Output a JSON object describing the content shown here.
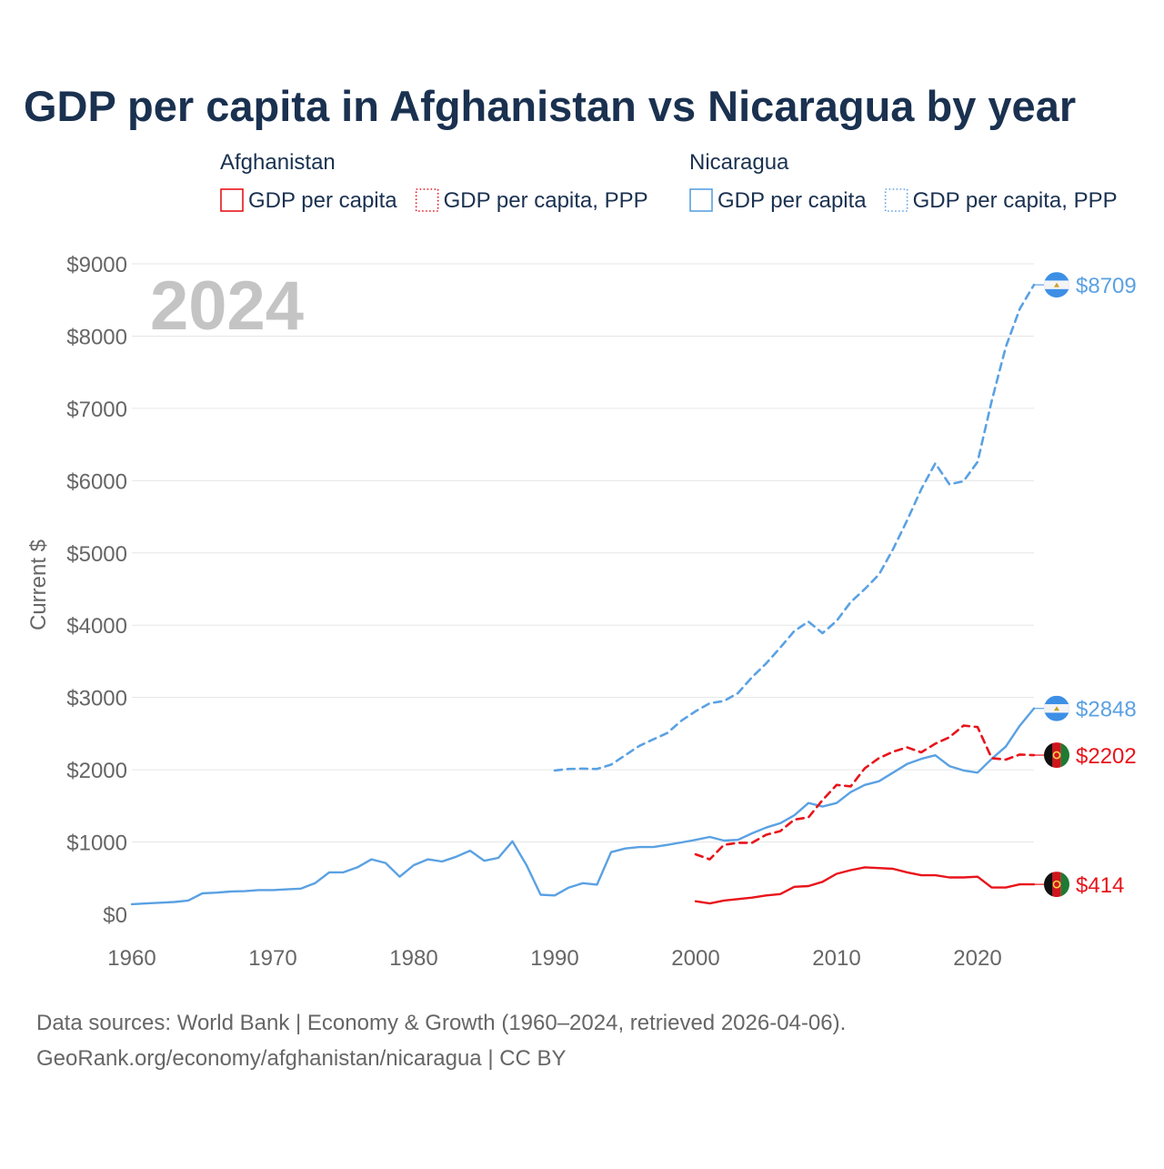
{
  "chart_data": {
    "type": "line",
    "title": "GDP per capita in Afghanistan vs Nicaragua by year",
    "year_badge": "2024",
    "ylabel": "Current $",
    "xlabel": "",
    "xlim": [
      1960,
      2024
    ],
    "ylim": [
      0,
      9000
    ],
    "x_ticks": [
      1960,
      1970,
      1980,
      1990,
      2000,
      2010,
      2020
    ],
    "y_ticks": [
      {
        "value": 0,
        "label": "$0"
      },
      {
        "value": 1000,
        "label": "$1000"
      },
      {
        "value": 2000,
        "label": "$2000"
      },
      {
        "value": 3000,
        "label": "$3000"
      },
      {
        "value": 4000,
        "label": "$4000"
      },
      {
        "value": 5000,
        "label": "$5000"
      },
      {
        "value": 6000,
        "label": "$6000"
      },
      {
        "value": 7000,
        "label": "$7000"
      },
      {
        "value": 8000,
        "label": "$8000"
      },
      {
        "value": 9000,
        "label": "$9000"
      }
    ],
    "grid": true,
    "legend": {
      "placement": "top",
      "groups": [
        {
          "country": "Afghanistan",
          "items": [
            {
              "label": "GDP per capita",
              "style": "solid",
              "color": "#e8141b"
            },
            {
              "label": "GDP per capita, PPP",
              "style": "dotted",
              "color": "#e8141b"
            }
          ]
        },
        {
          "country": "Nicaragua",
          "items": [
            {
              "label": "GDP per capita",
              "style": "solid",
              "color": "#5aa1e3"
            },
            {
              "label": "GDP per capita, PPP",
              "style": "dotted",
              "color": "#5aa1e3"
            }
          ]
        }
      ]
    },
    "series": [
      {
        "name": "Nicaragua GDP per capita, PPP",
        "country": "Nicaragua",
        "color": "#5aa1e3",
        "style": "dashed",
        "end_label": "$8709",
        "flag": "nicaragua",
        "x": [
          1990,
          1991,
          1992,
          1993,
          1994,
          1995,
          1996,
          1997,
          1998,
          1999,
          2000,
          2001,
          2002,
          2003,
          2004,
          2005,
          2006,
          2007,
          2008,
          2009,
          2010,
          2011,
          2012,
          2013,
          2014,
          2015,
          2016,
          2017,
          2018,
          2019,
          2020,
          2021,
          2022,
          2023,
          2024
        ],
        "values": [
          1990,
          2010,
          2015,
          2010,
          2070,
          2200,
          2330,
          2420,
          2510,
          2680,
          2810,
          2920,
          2950,
          3060,
          3280,
          3470,
          3690,
          3920,
          4050,
          3890,
          4060,
          4320,
          4500,
          4700,
          5050,
          5450,
          5880,
          6240,
          5950,
          5990,
          6260,
          7100,
          7850,
          8380,
          8709
        ]
      },
      {
        "name": "Nicaragua GDP per capita",
        "country": "Nicaragua",
        "color": "#5aa1e3",
        "style": "solid",
        "end_label": "$2848",
        "flag": "nicaragua",
        "x": [
          1960,
          1961,
          1962,
          1963,
          1964,
          1965,
          1966,
          1967,
          1968,
          1969,
          1970,
          1971,
          1972,
          1973,
          1974,
          1975,
          1976,
          1977,
          1978,
          1979,
          1980,
          1981,
          1982,
          1983,
          1984,
          1985,
          1986,
          1987,
          1988,
          1989,
          1990,
          1991,
          1992,
          1993,
          1994,
          1995,
          1996,
          1997,
          1998,
          1999,
          2000,
          2001,
          2002,
          2003,
          2004,
          2005,
          2006,
          2007,
          2008,
          2009,
          2010,
          2011,
          2012,
          2013,
          2014,
          2015,
          2016,
          2017,
          2018,
          2019,
          2020,
          2021,
          2022,
          2023,
          2024
        ],
        "values": [
          140,
          150,
          160,
          170,
          190,
          290,
          300,
          315,
          320,
          335,
          335,
          345,
          355,
          430,
          580,
          580,
          650,
          760,
          710,
          520,
          680,
          760,
          730,
          795,
          880,
          740,
          780,
          1010,
          680,
          270,
          260,
          370,
          430,
          410,
          860,
          910,
          930,
          930,
          960,
          995,
          1030,
          1070,
          1020,
          1030,
          1120,
          1200,
          1260,
          1370,
          1540,
          1490,
          1540,
          1690,
          1790,
          1840,
          1960,
          2080,
          2150,
          2200,
          2050,
          1990,
          1960,
          2150,
          2320,
          2610,
          2848
        ]
      },
      {
        "name": "Afghanistan GDP per capita, PPP",
        "country": "Afghanistan",
        "color": "#e8141b",
        "style": "dashed",
        "end_label": "$2202",
        "flag": "afghanistan",
        "x": [
          2000,
          2001,
          2002,
          2003,
          2004,
          2005,
          2006,
          2007,
          2008,
          2009,
          2010,
          2011,
          2012,
          2013,
          2014,
          2015,
          2016,
          2017,
          2018,
          2019,
          2020,
          2021,
          2022,
          2023,
          2024
        ],
        "values": [
          830,
          760,
          960,
          990,
          990,
          1100,
          1150,
          1310,
          1340,
          1580,
          1790,
          1770,
          2020,
          2160,
          2250,
          2310,
          2240,
          2360,
          2450,
          2610,
          2590,
          2160,
          2140,
          2210,
          2202
        ]
      },
      {
        "name": "Afghanistan GDP per capita",
        "country": "Afghanistan",
        "color": "#e8141b",
        "style": "solid",
        "end_label": "$414",
        "flag": "afghanistan",
        "x": [
          2000,
          2001,
          2002,
          2003,
          2004,
          2005,
          2006,
          2007,
          2008,
          2009,
          2010,
          2011,
          2012,
          2013,
          2014,
          2015,
          2016,
          2017,
          2018,
          2019,
          2020,
          2021,
          2022,
          2023,
          2024
        ],
        "values": [
          180,
          150,
          190,
          210,
          230,
          260,
          280,
          380,
          390,
          450,
          560,
          610,
          650,
          640,
          630,
          580,
          540,
          540,
          510,
          510,
          520,
          370,
          370,
          414,
          414
        ]
      }
    ],
    "footer": [
      "Data sources: World Bank | Economy & Growth (1960–2024, retrieved 2026-04-06).",
      "GeoRank.org/economy/afghanistan/nicaragua | CC BY"
    ],
    "colors": {
      "title": "#1a3150",
      "axis_text": "#666666",
      "grid": "#e6e6e6",
      "badge": "#c4c4c4",
      "afghanistan": "#e8141b",
      "nicaragua": "#5aa1e3"
    }
  }
}
